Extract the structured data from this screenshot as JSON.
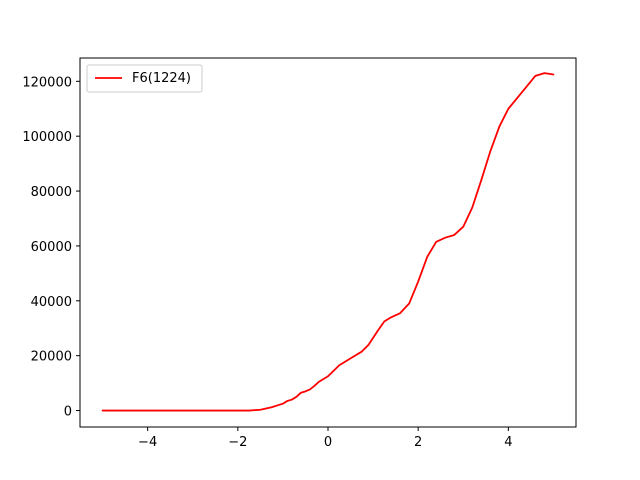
{
  "chart_data": {
    "type": "line",
    "title": "",
    "xlabel": "",
    "ylabel": "",
    "xlim": [
      -5.5,
      5.5
    ],
    "ylim": [
      -6000,
      128500
    ],
    "xticks": [
      -4,
      -2,
      0,
      2,
      4
    ],
    "xtick_labels": [
      "−4",
      "−2",
      "0",
      "2",
      "4"
    ],
    "yticks": [
      0,
      20000,
      40000,
      60000,
      80000,
      100000,
      120000
    ],
    "ytick_labels": [
      "0",
      "20000",
      "40000",
      "60000",
      "80000",
      "100000",
      "120000"
    ],
    "grid": false,
    "legend": {
      "position": "top-left",
      "entries": [
        "F6(1224)"
      ]
    },
    "series": [
      {
        "name": "F6(1224)",
        "color": "#ff0000",
        "x": [
          -5,
          -4,
          -3,
          -2,
          -1.75,
          -1.5,
          -1.25,
          -1.1,
          -1.0,
          -0.9,
          -0.8,
          -0.7,
          -0.6,
          -0.5,
          -0.4,
          -0.3,
          -0.2,
          0,
          0.25,
          0.5,
          0.75,
          0.9,
          1.0,
          1.1,
          1.25,
          1.4,
          1.6,
          1.8,
          2.0,
          2.2,
          2.4,
          2.6,
          2.8,
          3.0,
          3.2,
          3.4,
          3.6,
          3.8,
          4.0,
          4.2,
          4.4,
          4.6,
          4.8,
          5.0
        ],
        "y": [
          0,
          0,
          0,
          0,
          0,
          300,
          1200,
          2000,
          2500,
          3500,
          4000,
          5000,
          6500,
          7000,
          7700,
          9000,
          10500,
          12500,
          16500,
          19000,
          21500,
          24000,
          26500,
          29000,
          32500,
          34000,
          35500,
          39000,
          47000,
          56000,
          61500,
          63000,
          64000,
          67000,
          74000,
          84000,
          94500,
          103500,
          110000,
          114000,
          118000,
          122000,
          123000,
          122500
        ]
      }
    ]
  }
}
